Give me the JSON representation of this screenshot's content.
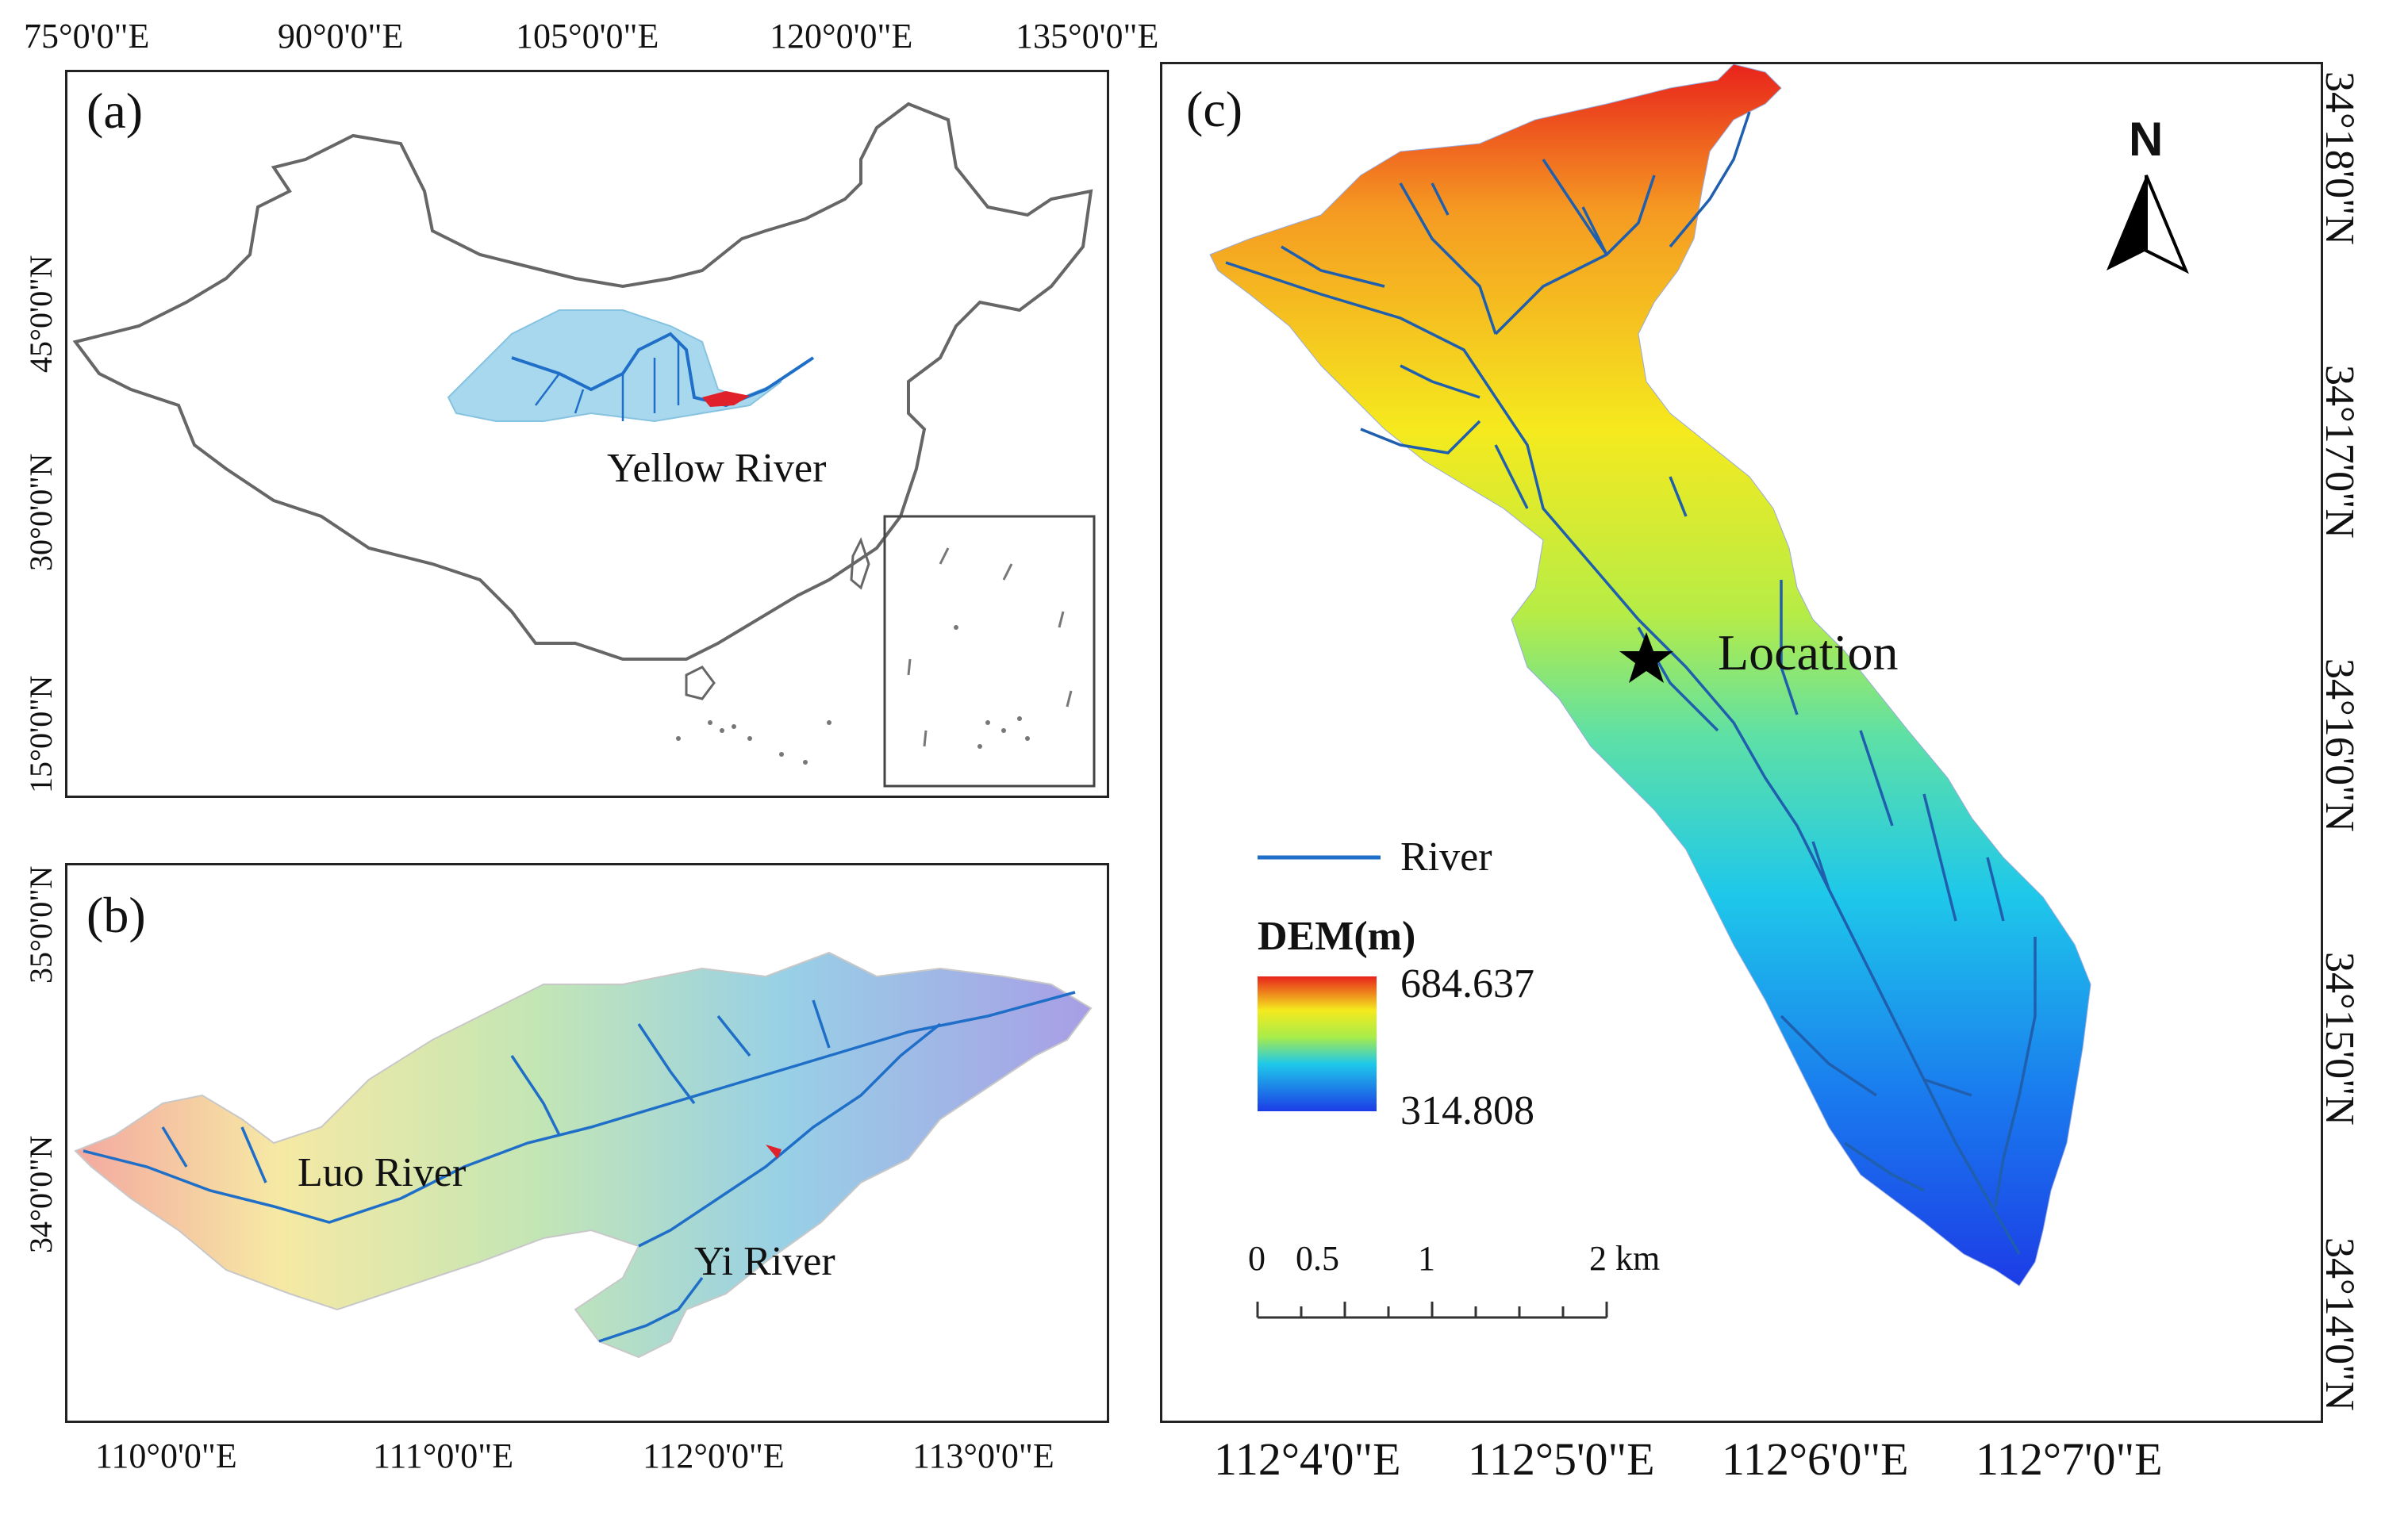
{
  "panel_a": {
    "letter": "(a)",
    "label_yellow_river": "Yellow River",
    "lon_ticks": [
      "75°0'0\"E",
      "90°0'0\"E",
      "105°0'0\"E",
      "120°0'0\"E",
      "135°0'0\"E"
    ],
    "lat_ticks": [
      "45°0'0\"N",
      "30°0'0\"N",
      "15°0'0\"N"
    ]
  },
  "panel_b": {
    "letter": "(b)",
    "label_luo_river": "Luo River",
    "label_yi_river": "Yi River",
    "lon_ticks": [
      "110°0'0\"E",
      "111°0'0\"E",
      "112°0'0\"E",
      "113°0'0\"E"
    ],
    "lat_ticks": [
      "35°0'0\"N",
      "34°0'0\"N"
    ]
  },
  "panel_c": {
    "letter": "(c)",
    "label_location": "Location",
    "north_label": "N",
    "legend": {
      "river_label": "River",
      "dem_title": "DEM(m)",
      "dem_max": "684.637",
      "dem_min": "314.808"
    },
    "scalebar": {
      "labels": [
        "0",
        "0.5",
        "1",
        "2 km"
      ]
    },
    "lon_ticks": [
      "112°4'0\"E",
      "112°5'0\"E",
      "112°6'0\"E",
      "112°7'0\"E"
    ],
    "lat_ticks": [
      "34°18'0\"N",
      "34°17'0\"N",
      "34°16'0\"N",
      "34°15'0\"N",
      "34°14'0\"N"
    ]
  },
  "colors": {
    "yellow_river_basin": "#a8d8ee",
    "river_blue": "#1f6fc8",
    "study_area_red": "#e0202a",
    "dem_high": "#e8231c",
    "dem_mid": "#f5ea1e",
    "dem_low": "#1c3ce6"
  }
}
